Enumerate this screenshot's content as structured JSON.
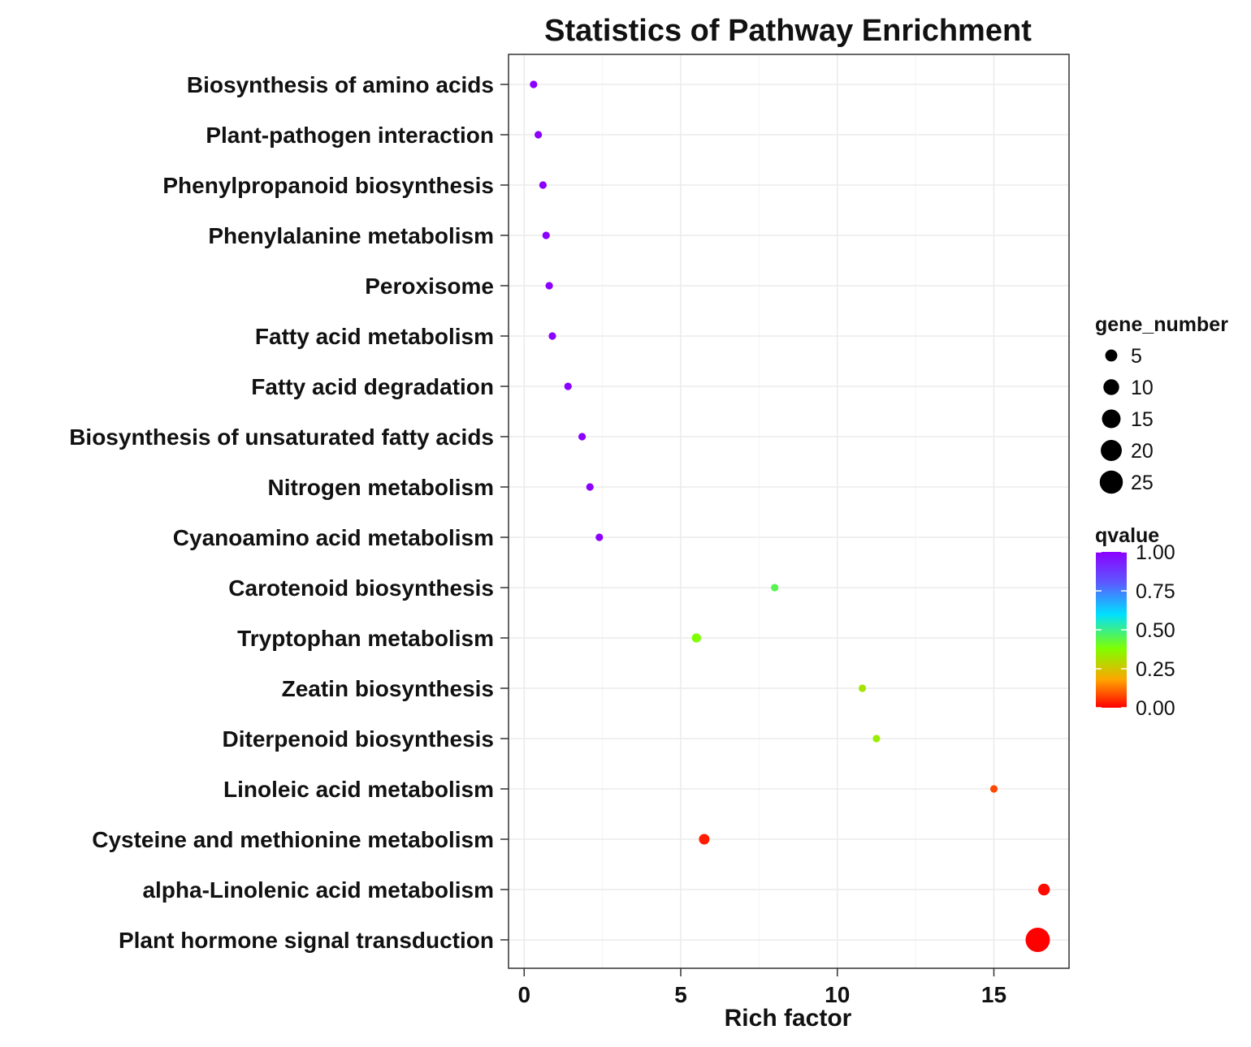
{
  "chart_data": {
    "type": "scatter",
    "title": "Statistics of Pathway Enrichment",
    "xlabel": "Rich factor",
    "ylabel": "",
    "xlim": [
      -0.5,
      17.4
    ],
    "xticks": [
      0,
      5,
      10,
      15
    ],
    "grid": true,
    "categories": [
      "Biosynthesis of amino acids",
      "Plant-pathogen interaction",
      "Phenylpropanoid biosynthesis",
      "Phenylalanine metabolism",
      "Peroxisome",
      "Fatty acid metabolism",
      "Fatty acid degradation",
      "Biosynthesis of unsaturated fatty acids",
      "Nitrogen metabolism",
      "Cyanoamino acid metabolism",
      "Carotenoid biosynthesis",
      "Tryptophan metabolism",
      "Zeatin biosynthesis",
      "Diterpenoid biosynthesis",
      "Linoleic acid metabolism",
      "Cysteine and methionine metabolism",
      "alpha-Linolenic acid metabolism",
      "Plant hormone signal transduction"
    ],
    "points": [
      {
        "pathway": "Biosynthesis of amino acids",
        "rich_factor": 0.3,
        "gene_number": 1,
        "qvalue": 1.0
      },
      {
        "pathway": "Plant-pathogen interaction",
        "rich_factor": 0.45,
        "gene_number": 1,
        "qvalue": 1.0
      },
      {
        "pathway": "Phenylpropanoid biosynthesis",
        "rich_factor": 0.6,
        "gene_number": 1,
        "qvalue": 1.0
      },
      {
        "pathway": "Phenylalanine metabolism",
        "rich_factor": 0.7,
        "gene_number": 1,
        "qvalue": 1.0
      },
      {
        "pathway": "Peroxisome",
        "rich_factor": 0.8,
        "gene_number": 1,
        "qvalue": 1.0
      },
      {
        "pathway": "Fatty acid metabolism",
        "rich_factor": 0.9,
        "gene_number": 1,
        "qvalue": 1.0
      },
      {
        "pathway": "Fatty acid degradation",
        "rich_factor": 1.4,
        "gene_number": 1,
        "qvalue": 1.0
      },
      {
        "pathway": "Biosynthesis of unsaturated fatty acids",
        "rich_factor": 1.85,
        "gene_number": 1,
        "qvalue": 1.0
      },
      {
        "pathway": "Nitrogen metabolism",
        "rich_factor": 2.1,
        "gene_number": 1,
        "qvalue": 1.0
      },
      {
        "pathway": "Cyanoamino acid metabolism",
        "rich_factor": 2.4,
        "gene_number": 1,
        "qvalue": 1.0
      },
      {
        "pathway": "Carotenoid biosynthesis",
        "rich_factor": 8.0,
        "gene_number": 1,
        "qvalue": 0.45
      },
      {
        "pathway": "Tryptophan metabolism",
        "rich_factor": 5.5,
        "gene_number": 2,
        "qvalue": 0.38
      },
      {
        "pathway": "Zeatin biosynthesis",
        "rich_factor": 10.8,
        "gene_number": 1,
        "qvalue": 0.32
      },
      {
        "pathway": "Diterpenoid biosynthesis",
        "rich_factor": 11.25,
        "gene_number": 1,
        "qvalue": 0.34
      },
      {
        "pathway": "Linoleic acid metabolism",
        "rich_factor": 15.0,
        "gene_number": 1,
        "qvalue": 0.08
      },
      {
        "pathway": "Cysteine and methionine metabolism",
        "rich_factor": 5.75,
        "gene_number": 3,
        "qvalue": 0.03
      },
      {
        "pathway": "alpha-Linolenic acid metabolism",
        "rich_factor": 16.6,
        "gene_number": 4,
        "qvalue": 0.01
      },
      {
        "pathway": "Plant hormone signal transduction",
        "rich_factor": 16.4,
        "gene_number": 25,
        "qvalue": 0.0
      }
    ],
    "legend_size": {
      "title": "gene_number",
      "values": [
        5,
        10,
        15,
        20,
        25
      ],
      "labels": [
        "5",
        "10",
        "15",
        "20",
        "25"
      ]
    },
    "legend_color": {
      "title": "qvalue",
      "ticks": [
        "1.00",
        "0.75",
        "0.50",
        "0.25",
        "0.00"
      ],
      "tick_values": [
        1.0,
        0.75,
        0.5,
        0.25,
        0.0
      ],
      "colors": [
        "#8b00ff",
        "#5b5bff",
        "#00e0ff",
        "#7fff00",
        "#ffa500",
        "#ff0000"
      ]
    },
    "colors": {
      "panel_border": "#333333",
      "grid": "#ebebeb",
      "size_legend_dot": "#000000"
    }
  }
}
